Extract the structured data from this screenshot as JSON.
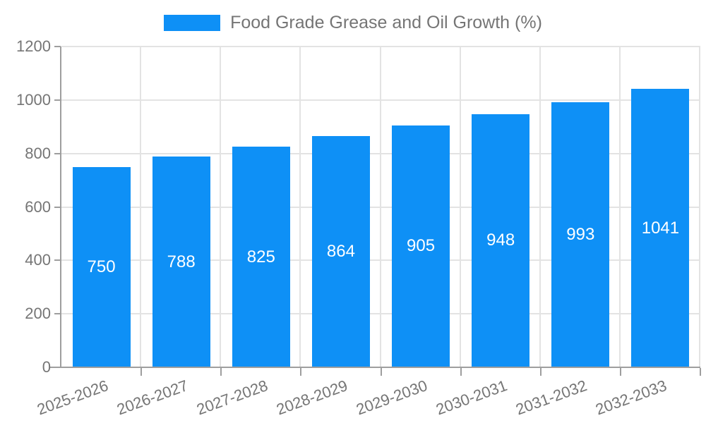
{
  "chart_data": {
    "type": "bar",
    "legend": "Food Grade Grease and Oil Growth (%)",
    "legend_position": "top",
    "categories": [
      "2025-2026",
      "2026-2027",
      "2027-2028",
      "2028-2029",
      "2029-2030",
      "2030-2031",
      "2031-2032",
      "2032-2033"
    ],
    "values": [
      750,
      788,
      825,
      864,
      905,
      948,
      993,
      1041
    ],
    "value_labels": [
      "750",
      "788",
      "825",
      "864",
      "905",
      "948",
      "993",
      "1041"
    ],
    "xlabel": "",
    "ylabel": "",
    "ylim": [
      0,
      1200
    ],
    "ytick_step": 200,
    "ytick_labels": [
      "0",
      "200",
      "400",
      "600",
      "800",
      "1000",
      "1200"
    ],
    "grid": true,
    "colors": {
      "bar": "#0e90f6",
      "value_label": "#ffffff",
      "axis_text": "#757575",
      "axis_line": "#9e9e9e",
      "gridline": "#e3e3e3",
      "background": "#ffffff"
    }
  }
}
